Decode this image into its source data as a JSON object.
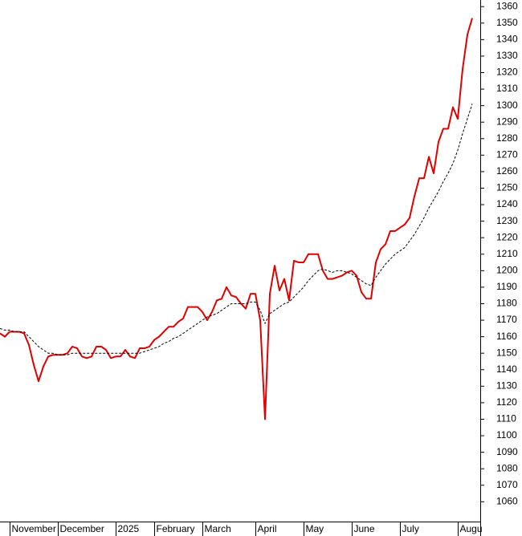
{
  "chart_data": {
    "type": "line",
    "categories": [
      null,
      null,
      "November",
      null,
      null,
      null,
      null,
      null,
      null,
      null,
      null,
      null,
      "December",
      null,
      null,
      null,
      null,
      null,
      null,
      null,
      null,
      null,
      null,
      null,
      "2025",
      null,
      null,
      null,
      null,
      null,
      null,
      null,
      "February",
      null,
      null,
      null,
      null,
      null,
      null,
      null,
      null,
      null,
      "March",
      null,
      null,
      null,
      null,
      null,
      null,
      null,
      null,
      null,
      null,
      "April",
      null,
      null,
      null,
      null,
      null,
      null,
      null,
      null,
      null,
      "May",
      null,
      null,
      null,
      null,
      null,
      null,
      null,
      null,
      null,
      "June",
      null,
      null,
      null,
      null,
      null,
      null,
      null,
      null,
      null,
      "July",
      null,
      null,
      null,
      null,
      null,
      null,
      null,
      null,
      null,
      null,
      null,
      "Augu",
      null,
      null,
      null
    ],
    "series": [
      {
        "color": "#e00000",
        "style": "solid",
        "values": [
          1162,
          1160,
          1163,
          1163,
          1163,
          1162,
          1155,
          1143,
          1133,
          1142,
          1148,
          1149,
          1149,
          1149,
          1150,
          1154,
          1153,
          1148,
          1147,
          1148,
          1154,
          1154,
          1152,
          1147,
          1148,
          1148,
          1152,
          1148,
          1147,
          1153,
          1153,
          1154,
          1158,
          1160,
          1163,
          1166,
          1166,
          1169,
          1171,
          1178,
          1178,
          1178,
          1175,
          1170,
          1175,
          1182,
          1183,
          1190,
          1185,
          1184,
          1180,
          1177,
          1186,
          1186,
          1170,
          1110,
          1186,
          1203,
          1188,
          1195,
          1182,
          1206,
          1205,
          1205,
          1210,
          1210,
          1210,
          1200,
          1195,
          1195,
          1196,
          1197,
          1199,
          1200,
          1197,
          1187,
          1183,
          1183,
          1205,
          1213,
          1216,
          1224,
          1224,
          1226,
          1228,
          1232,
          1245,
          1256,
          1256,
          1269,
          1259,
          1278,
          1286,
          1286,
          1299,
          1292,
          1322,
          1343,
          1353
        ]
      },
      {
        "color": "#000000",
        "style": "dashed",
        "values": [
          1165,
          1164,
          1164,
          1163,
          1163,
          1163,
          1160,
          1157,
          1154,
          1152,
          1150,
          1150,
          1149,
          1149,
          1149,
          1150,
          1150,
          1150,
          1150,
          1150,
          1150,
          1150,
          1150,
          1150,
          1150,
          1150,
          1150,
          1150,
          1150,
          1150,
          1151,
          1152,
          1153,
          1154,
          1156,
          1157,
          1159,
          1160,
          1162,
          1164,
          1166,
          1168,
          1170,
          1172,
          1173,
          1174,
          1176,
          1178,
          1180,
          1180,
          1180,
          1180,
          1181,
          1181,
          1176,
          1168,
          1174,
          1176,
          1178,
          1180,
          1181,
          1184,
          1187,
          1190,
          1194,
          1197,
          1200,
          1201,
          1200,
          1199,
          1200,
          1200,
          1199,
          1198,
          1196,
          1194,
          1192,
          1191,
          1196,
          1200,
          1204,
          1207,
          1210,
          1212,
          1214,
          1218,
          1222,
          1227,
          1232,
          1238,
          1243,
          1248,
          1254,
          1259,
          1265,
          1273,
          1283,
          1292,
          1301
        ]
      }
    ],
    "ylim": [
      1048,
      1364
    ],
    "yticks": [
      1060,
      1070,
      1080,
      1090,
      1100,
      1110,
      1120,
      1130,
      1140,
      1150,
      1160,
      1170,
      1180,
      1190,
      1200,
      1210,
      1220,
      1230,
      1240,
      1250,
      1260,
      1270,
      1280,
      1290,
      1300,
      1310,
      1320,
      1330,
      1340,
      1350,
      1360
    ]
  }
}
